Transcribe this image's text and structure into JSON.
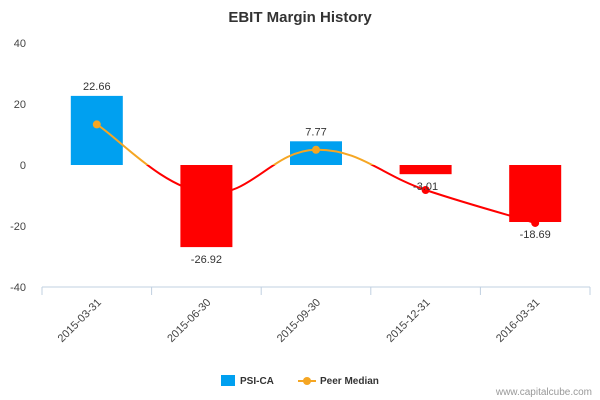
{
  "chart_data": {
    "type": "bar",
    "title": "EBIT Margin History",
    "categories": [
      "2015-03-31",
      "2015-06-30",
      "2015-09-30",
      "2015-12-31",
      "2016-03-31"
    ],
    "series": [
      {
        "name": "PSI-CA",
        "type": "bar",
        "values": [
          22.66,
          -26.92,
          7.77,
          -3.01,
          -18.69
        ],
        "data_labels": [
          "22.66",
          "-26.92",
          "7.77",
          "-3.01",
          "-18.69"
        ]
      },
      {
        "name": "Peer Median",
        "type": "line",
        "values": [
          13.3,
          -9.2,
          5.0,
          -8.2,
          -19.0
        ]
      }
    ],
    "ylim": [
      -40,
      40
    ],
    "yticks": [
      -40,
      -20,
      0,
      20,
      40
    ],
    "xlabel": "",
    "ylabel": "",
    "grid": false,
    "legend_position": "bottom-center",
    "colors": {
      "positive_bar": "#00a0f0",
      "negative_bar": "#ff0000",
      "median_line_positive": "#f5a623",
      "median_line_negative": "#ff0000",
      "median_marker": "#f5a623",
      "negative_marker": "#ff0000"
    }
  },
  "credit": "www.capitalcube.com"
}
